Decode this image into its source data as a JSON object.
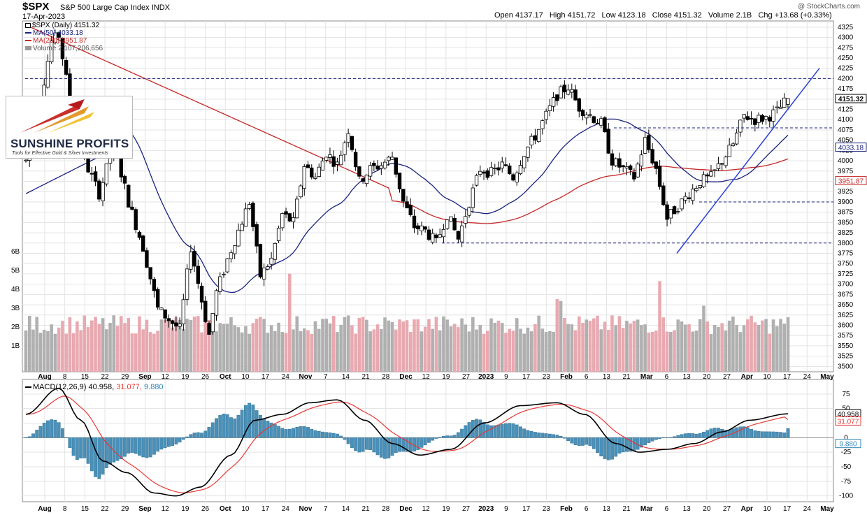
{
  "header": {
    "symbol": "$SPX",
    "name": "S&P 500 Large Cap Index",
    "exchange": "INDX",
    "date": "17-Apr-2023",
    "open_label": "Open",
    "open": "4137.17",
    "high_label": "High",
    "high": "4151.72",
    "low_label": "Low",
    "low": "4123.18",
    "close_label": "Close",
    "close": "4151.32",
    "volume_label": "Volume",
    "volume": "2.1B",
    "chg_label": "Chg",
    "chg": "+13.68 (+0.33%)",
    "watermark": "@ StockCharts.com"
  },
  "legend": {
    "price": "$SPX (Daily) 4151.32",
    "ma50": "MA(50) 4033.18",
    "ma200": "MA(200) 3951.87",
    "volume": "Volume 2,107,206,656",
    "macd_title": "MACD(12,26,9)",
    "macd_val": "40.958,",
    "macd_signal_val": "31.077,",
    "macd_hist_val": "9.880"
  },
  "logo": {
    "title": "SUNSHINE PROFITS",
    "subtitle": "Tools for Effective Gold & Silver Investments"
  },
  "colors": {
    "up": "#ffffff",
    "down": "#000000",
    "ma50": "#1a237e",
    "ma200": "#c62828",
    "vol_up": "#b0b0b0",
    "vol_down": "#e8a9b0",
    "hist": "#4a90b8",
    "macd": "#000000",
    "signal": "#e53935",
    "grid": "#e3e3e3",
    "hline": "#1a237e",
    "trend": "#2a3fd6"
  },
  "chart_data": [
    {
      "type": "candlestick",
      "title": "$SPX (Daily) 4151.32",
      "y_ticks": [
        3500,
        3525,
        3550,
        3575,
        3600,
        3625,
        3650,
        3675,
        3700,
        3725,
        3750,
        3775,
        3800,
        3825,
        3850,
        3875,
        3900,
        3925,
        3950,
        3975,
        4000,
        4025,
        4050,
        4075,
        4100,
        4125,
        4150,
        4175,
        4200,
        4225,
        4250,
        4275,
        4300,
        4325
      ],
      "ylim": [
        3487,
        4340
      ],
      "x_labels": [
        "Aug",
        "8",
        "15",
        "22",
        "29",
        "Sep",
        "12",
        "19",
        "26",
        "Oct",
        "10",
        "17",
        "24",
        "Nov",
        "7",
        "14",
        "21",
        "28",
        "Dec",
        "12",
        "19",
        "27",
        "2023",
        "9",
        "17",
        "23",
        "Feb",
        "6",
        "13",
        "21",
        "Mar",
        "6",
        "13",
        "20",
        "27",
        "Apr",
        "10",
        "17",
        "24",
        "May"
      ],
      "price_tags": [
        {
          "label": "4151.32",
          "value": 4151.32
        },
        {
          "label": "4033.18",
          "value": 4033.18
        },
        {
          "label": "3951.87",
          "value": 3951.87
        }
      ],
      "horizontal_levels": [
        4200,
        4080,
        3900,
        3800
      ],
      "trendline": {
        "from": {
          "date": "2023-03-10",
          "value": 3775
        },
        "to": {
          "date": "2023-04-27",
          "value": 4225
        }
      },
      "ohlc_keys": [
        {
          "period": "2022-08",
          "close": 4000
        },
        {
          "period": "2022-08-16",
          "close": 4305
        },
        {
          "period": "2022-09-30",
          "close": 3585
        },
        {
          "period": "2022-10-12",
          "close": 3577
        },
        {
          "period": "2022-12-01",
          "close": 4076
        },
        {
          "period": "2022-12-28",
          "close": 3783
        },
        {
          "period": "2023-02-02",
          "close": 4180
        },
        {
          "period": "2023-03-13",
          "close": 3855
        },
        {
          "period": "2023-04-17",
          "close": 4151.32
        }
      ],
      "ma50_label": "MA(50) 4033.18",
      "ma200_label": "MA(200) 3951.87"
    },
    {
      "type": "bar",
      "title": "Volume 2,107,206,656",
      "y_ticks": [
        "1B",
        "2B",
        "3B",
        "4B",
        "5B",
        "6B"
      ],
      "note": "volume histogram overlaid on price panel"
    },
    {
      "type": "line",
      "title": "MACD(12,26,9)",
      "series": [
        {
          "name": "MACD(12,26,9)",
          "last": 40.958
        },
        {
          "name": "signal",
          "last": 31.077
        },
        {
          "name": "histogram",
          "last": 9.88
        }
      ],
      "y_ticks": [
        75,
        50,
        25,
        0,
        -25,
        -50,
        -75,
        -100
      ],
      "price_tags": [
        {
          "label": "40.958",
          "value": 40.958
        },
        {
          "label": "31.077",
          "value": 31.077
        },
        {
          "label": "9.880",
          "value": 9.88
        }
      ]
    }
  ]
}
